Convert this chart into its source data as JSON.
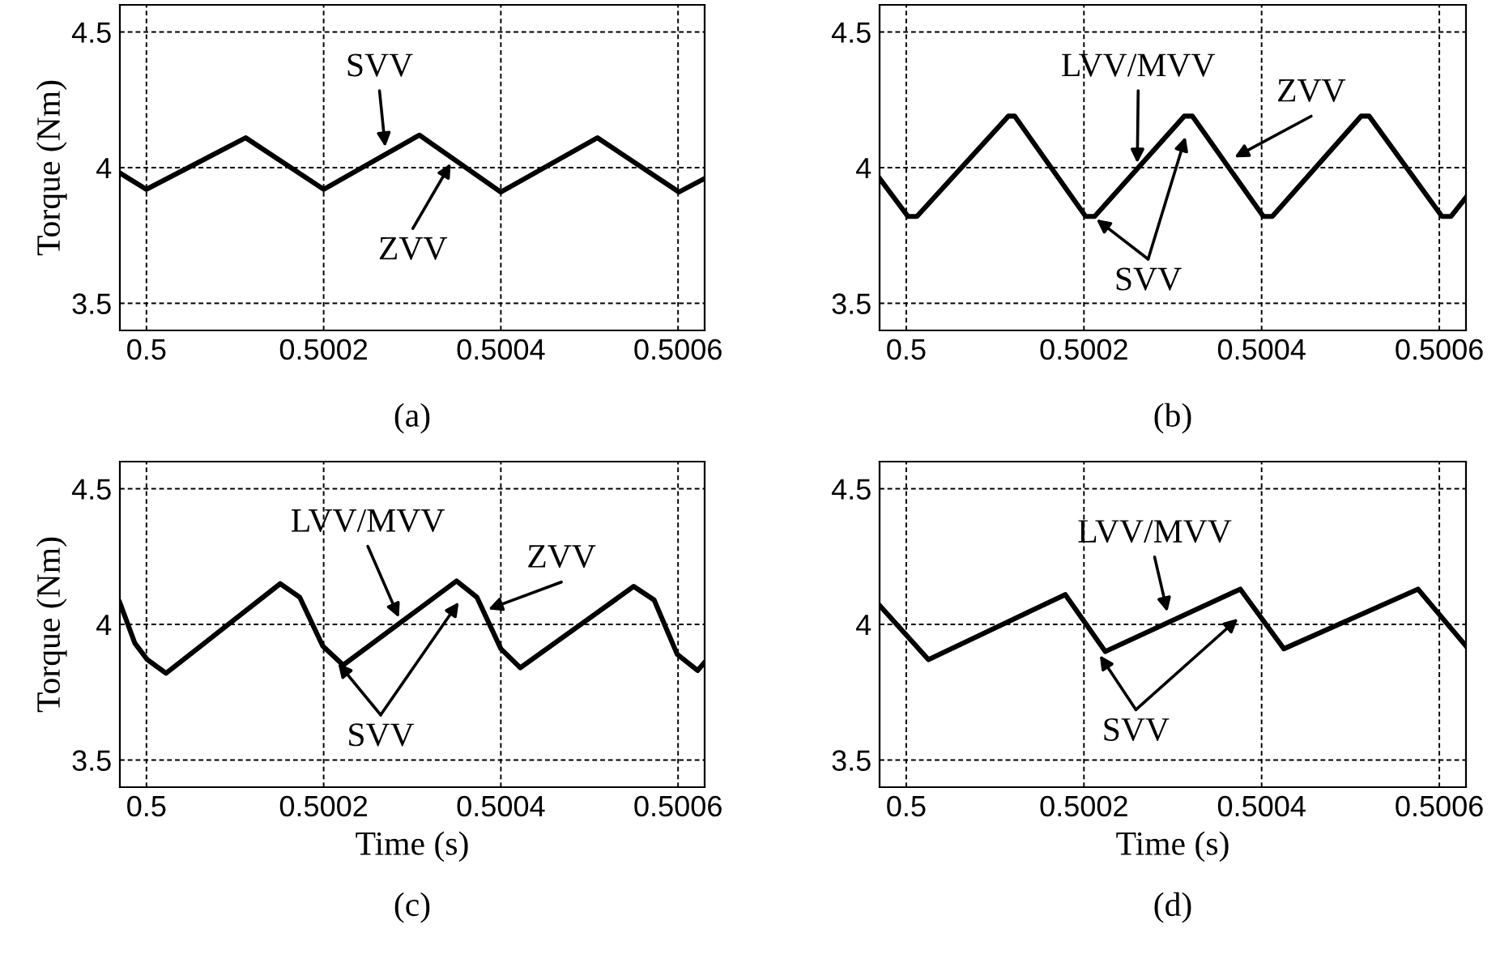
{
  "chart_data": [
    {
      "type": "line",
      "title": "(a)",
      "ylabel": "Torque (Nm)",
      "xlim": [
        0.49997,
        0.50063
      ],
      "xticks": [
        0.5,
        0.5002,
        0.5004,
        0.5006
      ],
      "ylim": [
        3.4,
        4.6
      ],
      "yticks": [
        3.5,
        4,
        4.5
      ],
      "grid": true,
      "line_style": "solid",
      "marker": "none",
      "series": [
        {
          "color": "#000000",
          "x": [
            0.49997,
            0.5,
            0.500112,
            0.5002,
            0.500308,
            0.5004,
            0.500509,
            0.500601,
            0.50063
          ],
          "values": [
            3.98,
            3.92,
            4.11,
            3.92,
            4.12,
            3.91,
            4.11,
            3.91,
            3.96
          ]
        }
      ],
      "annotations": [
        {
          "text": "SVV",
          "x": 0.50027,
          "y": 4.06
        },
        {
          "text": "ZVV",
          "x": 0.500346,
          "y": 4.03
        }
      ]
    },
    {
      "type": "line",
      "title": "(b)",
      "xlim": [
        0.49997,
        0.50063
      ],
      "xticks": [
        0.5,
        0.5002,
        0.5004,
        0.5006
      ],
      "ylim": [
        3.4,
        4.6
      ],
      "yticks": [
        3.5,
        4,
        4.5
      ],
      "grid": true,
      "line_style": "solid",
      "marker": "none",
      "series": [
        {
          "color": "#000000",
          "x": [
            0.49997,
            0.500002,
            0.500012,
            0.500115,
            0.500122,
            0.500202,
            0.500212,
            0.500313,
            0.500322,
            0.500402,
            0.500412,
            0.500512,
            0.500521,
            0.500603,
            0.500613,
            0.50063
          ],
          "values": [
            3.96,
            3.82,
            3.82,
            4.19,
            4.19,
            3.82,
            3.82,
            4.19,
            4.19,
            3.82,
            3.82,
            4.19,
            4.19,
            3.82,
            3.82,
            3.89
          ]
        }
      ],
      "annotations": [
        {
          "text": "LVV/MVV",
          "x": 0.50026,
          "y": 4.0
        },
        {
          "text": "ZVV",
          "x": 0.500365,
          "y": 4.03
        },
        {
          "text": "SVV",
          "x": 0.50021,
          "y": 3.82
        }
      ]
    },
    {
      "type": "line",
      "title": "(c)",
      "xlabel": "Time (s)",
      "ylabel": "Torque (Nm)",
      "xlim": [
        0.49997,
        0.50063
      ],
      "xticks": [
        0.5,
        0.5002,
        0.5004,
        0.5006
      ],
      "ylim": [
        3.4,
        4.6
      ],
      "yticks": [
        3.5,
        4,
        4.5
      ],
      "grid": true,
      "line_style": "solid",
      "marker": "none",
      "series": [
        {
          "color": "#000000",
          "x": [
            0.49997,
            0.499987,
            0.500001,
            0.500022,
            0.500151,
            0.500173,
            0.500199,
            0.500222,
            0.50035,
            0.500373,
            0.5004,
            0.500422,
            0.50055,
            0.500573,
            0.500599,
            0.500622,
            0.50063
          ],
          "values": [
            4.08,
            3.93,
            3.87,
            3.82,
            4.15,
            4.1,
            3.92,
            3.85,
            4.16,
            4.1,
            3.91,
            3.84,
            4.14,
            4.09,
            3.89,
            3.83,
            3.86
          ]
        }
      ],
      "annotations": [
        {
          "text": "LVV/MVV",
          "x": 0.500287,
          "y": 4.01
        },
        {
          "text": "ZVV",
          "x": 0.500381,
          "y": 4.05
        },
        {
          "text": "SVV",
          "x": 0.500213,
          "y": 3.87
        }
      ]
    },
    {
      "type": "line",
      "title": "(d)",
      "xlabel": "Time (s)",
      "xlim": [
        0.49997,
        0.50063
      ],
      "xticks": [
        0.5,
        0.5002,
        0.5004,
        0.5006
      ],
      "ylim": [
        3.4,
        4.6
      ],
      "yticks": [
        3.5,
        4,
        4.5
      ],
      "grid": true,
      "line_style": "solid",
      "marker": "none",
      "series": [
        {
          "color": "#000000",
          "x": [
            0.49997,
            0.500025,
            0.500179,
            0.500224,
            0.500376,
            0.500425,
            0.500576,
            0.50063
          ],
          "values": [
            4.07,
            3.87,
            4.11,
            3.9,
            4.13,
            3.91,
            4.13,
            3.92
          ]
        }
      ],
      "annotations": [
        {
          "text": "LVV/MVV",
          "x": 0.500295,
          "y": 4.03
        },
        {
          "text": "SVV",
          "x": 0.500215,
          "y": 3.9
        }
      ]
    }
  ]
}
